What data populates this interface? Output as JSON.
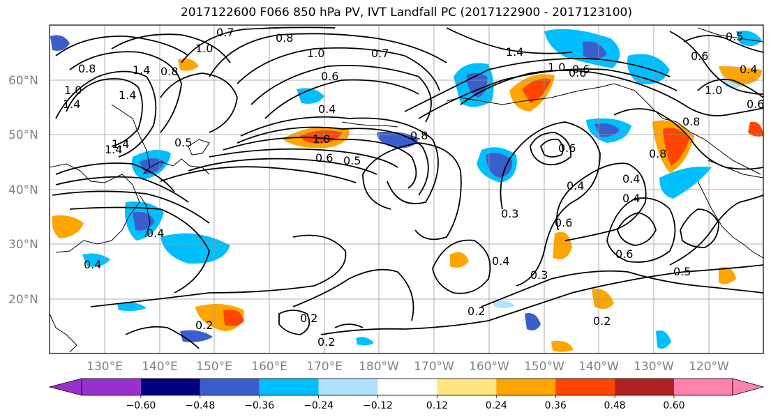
{
  "title": "2017122600 F066 850 hPa PV, IVT Landfall PC (2017122900 - 2017123100)",
  "latitude_labels": [
    "60°N",
    "50°N",
    "40°N",
    "30°N",
    "20°N"
  ],
  "longitude_labels": [
    "130°E",
    "140°E",
    "150°E",
    "160°E",
    "170°E",
    "180°W",
    "170°W",
    "160°W",
    "150°W",
    "140°W",
    "130°W",
    "120°W"
  ],
  "colorbar": {
    "colors": [
      "#9932cc",
      "#000080",
      "#3a5fcd",
      "#00bfff",
      "#b0e2ff",
      "#ffffff",
      "#ffe680",
      "#ffa500",
      "#ff4500",
      "#b22222",
      "#ff82ab"
    ],
    "tick_labels": [
      "−0.60",
      "−0.48",
      "−0.36",
      "−0.24",
      "−0.12",
      "0.12",
      "0.24",
      "0.36",
      "0.48",
      "0.60"
    ]
  },
  "contour_labels": [
    "0.7",
    "0.8",
    "1.0",
    "1.4",
    "1.4",
    "1.4",
    "1.0",
    "0.8",
    "0.8",
    "0.6",
    "0.5",
    "1.0",
    "1.4",
    "1.0",
    "0.7",
    "0.6",
    "0.4",
    "1.0",
    "0.6",
    "0.5",
    "0.8",
    "0.6",
    "0.4",
    "0.3",
    "0.6",
    "0.4",
    "0.4",
    "0.3",
    "0.6",
    "0.5",
    "0.8",
    "0.8",
    "1.0",
    "0.5",
    "0.6",
    "0.2",
    "0.2",
    "0.2",
    "0.2",
    "0.2",
    "0.4",
    "0.4",
    "1.4",
    "1.4",
    "0.6",
    "0.4",
    "0.6",
    "0.4"
  ]
}
